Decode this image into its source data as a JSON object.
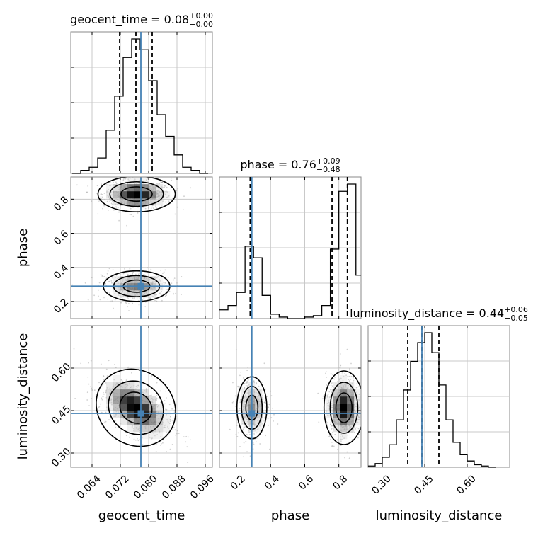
{
  "chart_data": {
    "type": "corner",
    "parameters": [
      {
        "name": "geocent_time",
        "range": [
          0.058,
          0.098
        ],
        "ticks": [
          0.064,
          0.072,
          0.08,
          0.088,
          0.096
        ],
        "tick_labels": [
          "0.064",
          "0.072",
          "0.080",
          "0.088",
          "0.096"
        ],
        "truth": 0.0778,
        "quantiles": [
          0.0718,
          0.0764,
          0.081
        ],
        "median_label": "0.08",
        "plus_label": "+0.00",
        "minus_label": "−0.00"
      },
      {
        "name": "phase",
        "range": [
          0.1,
          0.93
        ],
        "ticks": [
          0.2,
          0.4,
          0.6,
          0.8
        ],
        "tick_labels": [
          "0.2",
          "0.4",
          "0.6",
          "0.8"
        ],
        "truth": 0.29,
        "quantiles": [
          0.28,
          0.76,
          0.85
        ],
        "median_label": "0.76",
        "plus_label": "+0.09",
        "minus_label": "−0.48"
      },
      {
        "name": "luminosity_distance",
        "range": [
          0.25,
          0.75
        ],
        "ticks": [
          0.3,
          0.45,
          0.6
        ],
        "tick_labels": [
          "0.30",
          "0.45",
          "0.60"
        ],
        "truth": 0.44,
        "quantiles": [
          0.39,
          0.44,
          0.5
        ],
        "median_label": "0.44",
        "plus_label": "+0.06",
        "minus_label": "−0.05"
      }
    ],
    "histograms": [
      {
        "param": "geocent_time",
        "bin_edges": [
          0.0584,
          0.0608,
          0.0632,
          0.0656,
          0.068,
          0.0704,
          0.0728,
          0.0752,
          0.0776,
          0.08,
          0.0824,
          0.0848,
          0.0872,
          0.0896,
          0.092,
          0.0944,
          0.0968
        ],
        "counts": [
          0,
          2,
          4,
          10,
          28,
          50,
          75,
          87,
          80,
          60,
          38,
          24,
          12,
          4,
          2,
          0
        ]
      },
      {
        "param": "phase",
        "bin_edges": [
          0.1,
          0.15,
          0.2,
          0.25,
          0.3,
          0.35,
          0.4,
          0.45,
          0.5,
          0.55,
          0.6,
          0.65,
          0.7,
          0.75,
          0.8,
          0.85,
          0.9,
          0.93
        ],
        "counts": [
          6,
          9,
          18,
          50,
          42,
          16,
          3,
          1,
          0,
          0,
          1,
          2,
          9,
          48,
          88,
          93,
          30
        ]
      },
      {
        "param": "luminosity_distance",
        "bin_edges": [
          0.25,
          0.275,
          0.3,
          0.325,
          0.35,
          0.375,
          0.4,
          0.425,
          0.45,
          0.475,
          0.5,
          0.525,
          0.55,
          0.575,
          0.6,
          0.625,
          0.65,
          0.675,
          0.7
        ],
        "counts": [
          1,
          3,
          8,
          18,
          38,
          62,
          85,
          100,
          108,
          92,
          66,
          38,
          20,
          10,
          5,
          2,
          1,
          0
        ]
      }
    ],
    "contours_2d": [
      {
        "x": "geocent_time",
        "y": "phase",
        "modes": [
          {
            "cx": 0.0766,
            "cy": 0.83,
            "sx": 0.0042,
            "sy": 0.04,
            "rho": 0.0,
            "peak": 1.0
          },
          {
            "cx": 0.0766,
            "cy": 0.29,
            "sx": 0.0042,
            "sy": 0.04,
            "rho": 0.0,
            "peak": 0.6
          }
        ]
      },
      {
        "x": "geocent_time",
        "y": "luminosity_distance",
        "modes": [
          {
            "cx": 0.0764,
            "cy": 0.46,
            "sx": 0.0045,
            "sy": 0.05,
            "rho": -0.55,
            "peak": 1.0
          }
        ]
      },
      {
        "x": "phase",
        "y": "luminosity_distance",
        "modes": [
          {
            "cx": 0.29,
            "cy": 0.46,
            "sx": 0.04,
            "sy": 0.05,
            "rho": 0.0,
            "peak": 0.55
          },
          {
            "cx": 0.83,
            "cy": 0.46,
            "sx": 0.045,
            "sy": 0.05,
            "rho": 0.0,
            "peak": 1.0
          }
        ]
      }
    ],
    "contour_levels": [
      0.39,
      0.86,
      0.99
    ],
    "truth_color": "#4682b4",
    "line_color": "#000000",
    "grid": true
  }
}
